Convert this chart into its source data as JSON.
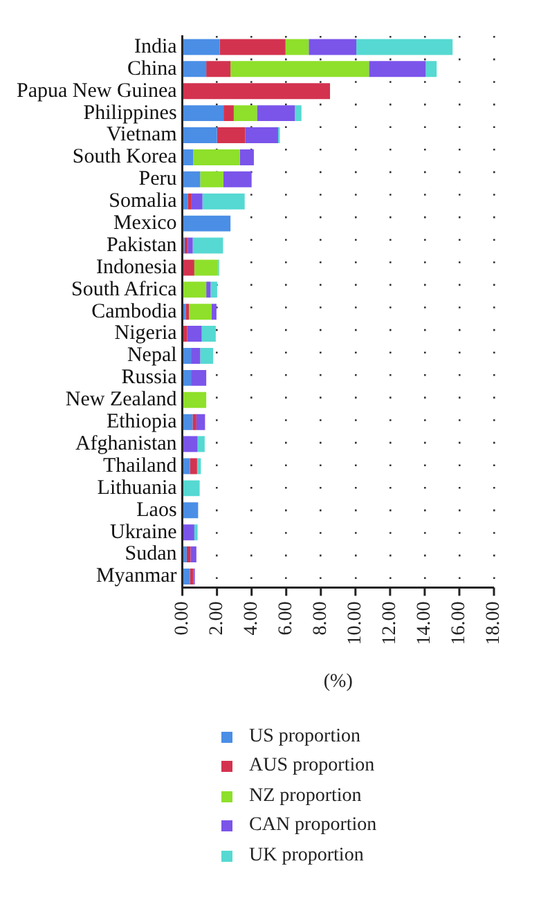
{
  "chart_data": {
    "type": "bar",
    "orientation": "horizontal",
    "stacked": true,
    "xlabel": "(%)",
    "categories": [
      "India",
      "China",
      "Papua New Guinea",
      "Philippines",
      "Vietnam",
      "South Korea",
      "Peru",
      "Somalia",
      "Mexico",
      "Pakistan",
      "Indonesia",
      "South Africa",
      "Cambodia",
      "Nigeria",
      "Nepal",
      "Russia",
      "New Zealand",
      "Ethiopia",
      "Afghanistan",
      "Thailand",
      "Lithuania",
      "Laos",
      "Ukraine",
      "Sudan",
      "Myanmar"
    ],
    "series": [
      {
        "name": "US proportion",
        "color": "#4a8ee6",
        "values": [
          2.16,
          1.38,
          0,
          2.38,
          2.0,
          0.63,
          1.03,
          0.31,
          2.78,
          0.13,
          0,
          0,
          0.19,
          0,
          0.5,
          0.5,
          0,
          0.59,
          0,
          0.44,
          0,
          0.91,
          0,
          0.25,
          0.44
        ]
      },
      {
        "name": "AUS proportion",
        "color": "#d3334f",
        "values": [
          3.8,
          1.4,
          8.53,
          0.59,
          1.63,
          0,
          0,
          0.22,
          0,
          0.19,
          0.69,
          0,
          0.19,
          0.28,
          0,
          0,
          0,
          0.22,
          0,
          0.41,
          0,
          0,
          0,
          0.22,
          0.19
        ]
      },
      {
        "name": "NZ proportion",
        "color": "#8ee02a",
        "values": [
          1.34,
          8.0,
          0,
          1.34,
          0,
          2.69,
          1.34,
          0,
          0,
          0,
          1.38,
          1.38,
          1.31,
          0,
          0,
          0,
          1.38,
          0,
          0,
          0,
          0,
          0,
          0,
          0,
          0
        ]
      },
      {
        "name": "CAN proportion",
        "color": "#7b54ea",
        "values": [
          2.75,
          3.28,
          0,
          2.19,
          1.9,
          0.81,
          1.63,
          0.63,
          0,
          0.28,
          0,
          0.25,
          0.28,
          0.84,
          0.53,
          0.88,
          0,
          0.5,
          0.88,
          0,
          0,
          0,
          0.69,
          0.34,
          0.09
        ]
      },
      {
        "name": "UK proportion",
        "color": "#55d9d2",
        "values": [
          5.56,
          0.63,
          0,
          0.38,
          0.1,
          0,
          0,
          2.44,
          0,
          1.75,
          0.06,
          0.38,
          0,
          0.81,
          0.75,
          0,
          0,
          0,
          0.41,
          0.22,
          1.0,
          0,
          0.19,
          0,
          0
        ]
      }
    ],
    "xlim": [
      0,
      18
    ],
    "xticks": [
      {
        "value": 0,
        "label": "0.00"
      },
      {
        "value": 2,
        "label": "2.00"
      },
      {
        "value": 4,
        "label": "4.00"
      },
      {
        "value": 6,
        "label": "6.00"
      },
      {
        "value": 8,
        "label": "8.00"
      },
      {
        "value": 10,
        "label": "10.00"
      },
      {
        "value": 12,
        "label": "12.00"
      },
      {
        "value": 14,
        "label": "14.00"
      },
      {
        "value": 16,
        "label": "16.00"
      },
      {
        "value": 18,
        "label": "18.00"
      }
    ],
    "grid": "x",
    "legend": "bottom"
  }
}
